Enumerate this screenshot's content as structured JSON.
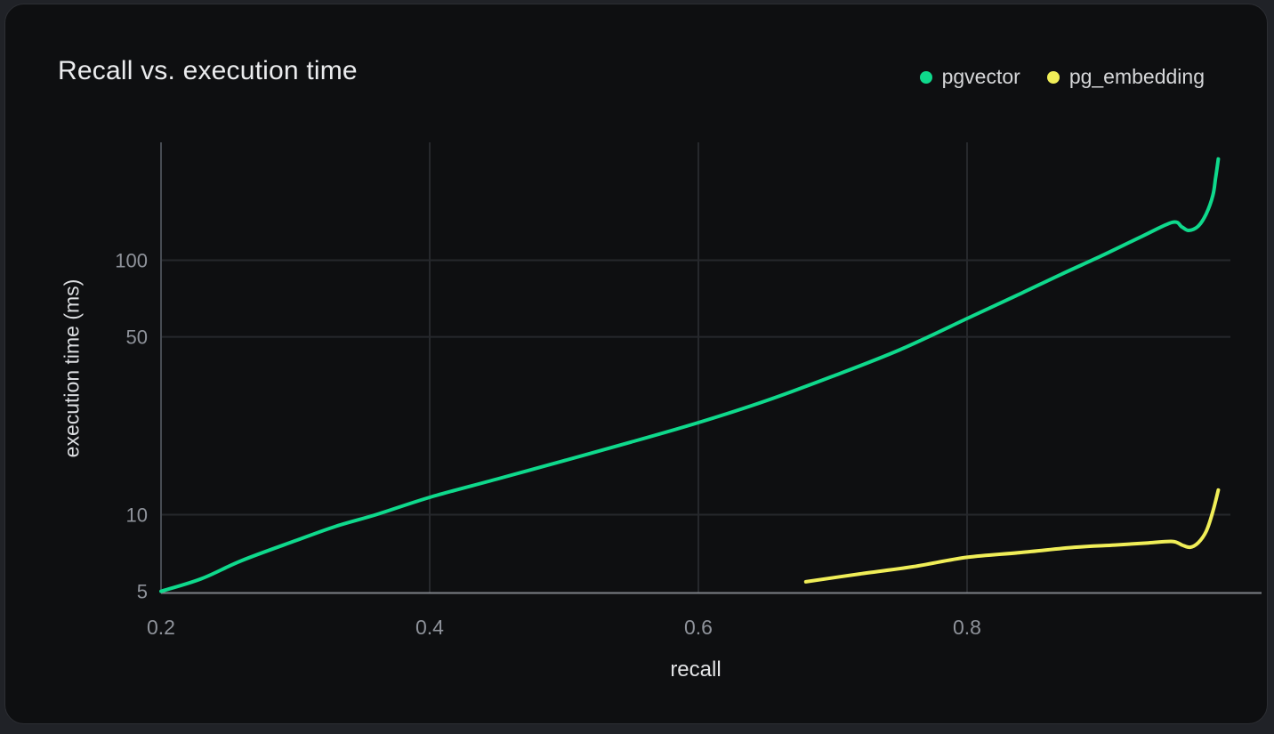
{
  "chart_data": {
    "type": "line",
    "title": "Recall vs. execution time",
    "xlabel": "recall",
    "ylabel": "execution time (ms)",
    "x_scale": "linear",
    "y_scale": "log",
    "x_range": [
      0.2,
      0.996
    ],
    "y_range": [
      4.8,
      290
    ],
    "grid": true,
    "legend_position": "top-right",
    "x_ticks": [
      {
        "value": 0.2,
        "label": "0.2"
      },
      {
        "value": 0.4,
        "label": "0.4"
      },
      {
        "value": 0.6,
        "label": "0.6"
      },
      {
        "value": 0.8,
        "label": "0.8"
      }
    ],
    "y_ticks": [
      {
        "value": 100,
        "label": "100"
      },
      {
        "value": 50,
        "label": "50"
      },
      {
        "value": 10,
        "label": "10"
      },
      {
        "value": 5,
        "label": "5"
      }
    ],
    "series": [
      {
        "name": "pgvector",
        "color": "#0fd98c",
        "points": [
          [
            0.2,
            5.0
          ],
          [
            0.23,
            5.6
          ],
          [
            0.26,
            6.6
          ],
          [
            0.3,
            7.9
          ],
          [
            0.33,
            9.0
          ],
          [
            0.36,
            10.0
          ],
          [
            0.4,
            11.7
          ],
          [
            0.45,
            13.8
          ],
          [
            0.5,
            16.3
          ],
          [
            0.55,
            19.3
          ],
          [
            0.6,
            23.0
          ],
          [
            0.65,
            28.0
          ],
          [
            0.7,
            35.0
          ],
          [
            0.75,
            44.5
          ],
          [
            0.8,
            59.0
          ],
          [
            0.84,
            74.0
          ],
          [
            0.87,
            88.0
          ],
          [
            0.9,
            104.0
          ],
          [
            0.93,
            124.0
          ],
          [
            0.953,
            141.0
          ],
          [
            0.96,
            135.0
          ],
          [
            0.965,
            131.0
          ],
          [
            0.972,
            136.0
          ],
          [
            0.978,
            152.0
          ],
          [
            0.983,
            180.0
          ],
          [
            0.985,
            210.0
          ],
          [
            0.987,
            250.0
          ]
        ]
      },
      {
        "name": "pg_embedding",
        "color": "#f0ee58",
        "points": [
          [
            0.68,
            5.45
          ],
          [
            0.72,
            5.85
          ],
          [
            0.76,
            6.25
          ],
          [
            0.8,
            6.8
          ],
          [
            0.84,
            7.1
          ],
          [
            0.88,
            7.45
          ],
          [
            0.91,
            7.6
          ],
          [
            0.935,
            7.75
          ],
          [
            0.953,
            7.85
          ],
          [
            0.96,
            7.6
          ],
          [
            0.966,
            7.45
          ],
          [
            0.972,
            7.75
          ],
          [
            0.978,
            8.6
          ],
          [
            0.983,
            10.3
          ],
          [
            0.987,
            12.5
          ]
        ]
      }
    ],
    "colors": {
      "card_background": "#0e0f11",
      "page_background": "#202227",
      "gridline": "#26282c",
      "y_axis_line": "#474c53",
      "x_axis_line": "#7d8187",
      "tick_label": "#8f939b",
      "title_text": "#ebecee",
      "legend_text": "#d6d7d9"
    }
  }
}
